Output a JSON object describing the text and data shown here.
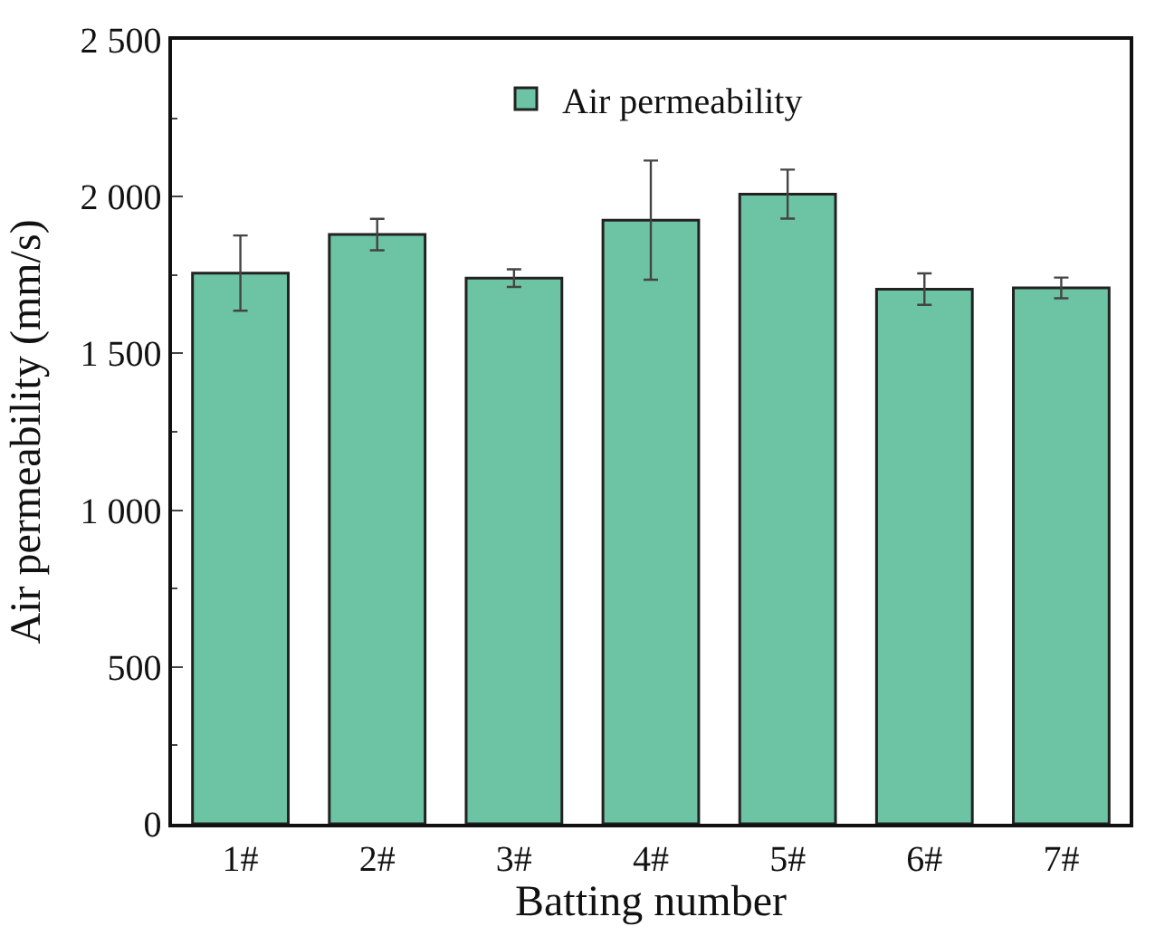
{
  "chart_data": {
    "type": "bar",
    "xlabel": "Batting number",
    "ylabel": "Air permeability (mm/s)",
    "categories": [
      "1#",
      "2#",
      "3#",
      "4#",
      "5#",
      "6#",
      "7#"
    ],
    "series": [
      {
        "name": "Air permeability",
        "color": "#6cc4a4",
        "values": [
          1756,
          1879,
          1740,
          1925,
          2008,
          1705,
          1709
        ],
        "errors": [
          120,
          50,
          28,
          190,
          78,
          50,
          33
        ]
      }
    ],
    "ylim": [
      0,
      2500
    ],
    "yticks": [
      0,
      500,
      {
        "value": 1000,
        "label": "1 000"
      },
      {
        "value": 1500,
        "label": "1 500"
      },
      {
        "value": 2000,
        "label": "2 000"
      },
      {
        "value": 2500,
        "label": "2 500"
      }
    ],
    "legend": "top",
    "grid": false
  }
}
